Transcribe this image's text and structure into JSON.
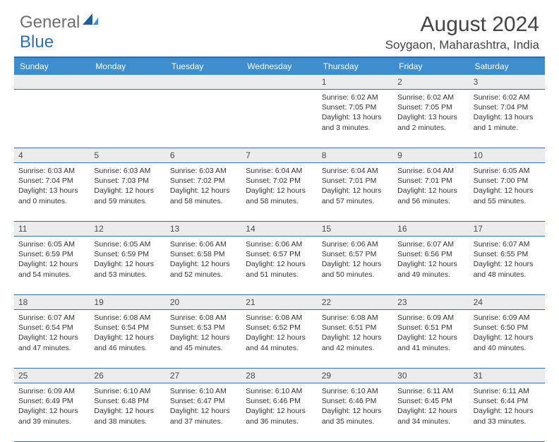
{
  "brand": {
    "part1": "General",
    "part2": "Blue"
  },
  "title": "August 2024",
  "location": "Soygaon, Maharashtra, India",
  "colors": {
    "header_bar": "#3c8ecf",
    "rule": "#2f6fab",
    "daynum_bg": "#ececec",
    "text": "#333333",
    "brand_gray": "#6e6e6e",
    "brand_blue": "#2f6fab",
    "background": "#ffffff"
  },
  "typography": {
    "title_fontsize": 30,
    "location_fontsize": 17,
    "dayhead_fontsize": 12,
    "daynum_fontsize": 12,
    "detail_fontsize": 10.5
  },
  "day_headers": [
    "Sunday",
    "Monday",
    "Tuesday",
    "Wednesday",
    "Thursday",
    "Friday",
    "Saturday"
  ],
  "weeks": [
    [
      {
        "n": "",
        "sr": "",
        "ss": "",
        "dl": ""
      },
      {
        "n": "",
        "sr": "",
        "ss": "",
        "dl": ""
      },
      {
        "n": "",
        "sr": "",
        "ss": "",
        "dl": ""
      },
      {
        "n": "",
        "sr": "",
        "ss": "",
        "dl": ""
      },
      {
        "n": "1",
        "sr": "Sunrise: 6:02 AM",
        "ss": "Sunset: 7:05 PM",
        "dl": "Daylight: 13 hours and 3 minutes."
      },
      {
        "n": "2",
        "sr": "Sunrise: 6:02 AM",
        "ss": "Sunset: 7:05 PM",
        "dl": "Daylight: 13 hours and 2 minutes."
      },
      {
        "n": "3",
        "sr": "Sunrise: 6:02 AM",
        "ss": "Sunset: 7:04 PM",
        "dl": "Daylight: 13 hours and 1 minute."
      }
    ],
    [
      {
        "n": "4",
        "sr": "Sunrise: 6:03 AM",
        "ss": "Sunset: 7:04 PM",
        "dl": "Daylight: 13 hours and 0 minutes."
      },
      {
        "n": "5",
        "sr": "Sunrise: 6:03 AM",
        "ss": "Sunset: 7:03 PM",
        "dl": "Daylight: 12 hours and 59 minutes."
      },
      {
        "n": "6",
        "sr": "Sunrise: 6:03 AM",
        "ss": "Sunset: 7:02 PM",
        "dl": "Daylight: 12 hours and 58 minutes."
      },
      {
        "n": "7",
        "sr": "Sunrise: 6:04 AM",
        "ss": "Sunset: 7:02 PM",
        "dl": "Daylight: 12 hours and 58 minutes."
      },
      {
        "n": "8",
        "sr": "Sunrise: 6:04 AM",
        "ss": "Sunset: 7:01 PM",
        "dl": "Daylight: 12 hours and 57 minutes."
      },
      {
        "n": "9",
        "sr": "Sunrise: 6:04 AM",
        "ss": "Sunset: 7:01 PM",
        "dl": "Daylight: 12 hours and 56 minutes."
      },
      {
        "n": "10",
        "sr": "Sunrise: 6:05 AM",
        "ss": "Sunset: 7:00 PM",
        "dl": "Daylight: 12 hours and 55 minutes."
      }
    ],
    [
      {
        "n": "11",
        "sr": "Sunrise: 6:05 AM",
        "ss": "Sunset: 6:59 PM",
        "dl": "Daylight: 12 hours and 54 minutes."
      },
      {
        "n": "12",
        "sr": "Sunrise: 6:05 AM",
        "ss": "Sunset: 6:59 PM",
        "dl": "Daylight: 12 hours and 53 minutes."
      },
      {
        "n": "13",
        "sr": "Sunrise: 6:06 AM",
        "ss": "Sunset: 6:58 PM",
        "dl": "Daylight: 12 hours and 52 minutes."
      },
      {
        "n": "14",
        "sr": "Sunrise: 6:06 AM",
        "ss": "Sunset: 6:57 PM",
        "dl": "Daylight: 12 hours and 51 minutes."
      },
      {
        "n": "15",
        "sr": "Sunrise: 6:06 AM",
        "ss": "Sunset: 6:57 PM",
        "dl": "Daylight: 12 hours and 50 minutes."
      },
      {
        "n": "16",
        "sr": "Sunrise: 6:07 AM",
        "ss": "Sunset: 6:56 PM",
        "dl": "Daylight: 12 hours and 49 minutes."
      },
      {
        "n": "17",
        "sr": "Sunrise: 6:07 AM",
        "ss": "Sunset: 6:55 PM",
        "dl": "Daylight: 12 hours and 48 minutes."
      }
    ],
    [
      {
        "n": "18",
        "sr": "Sunrise: 6:07 AM",
        "ss": "Sunset: 6:54 PM",
        "dl": "Daylight: 12 hours and 47 minutes."
      },
      {
        "n": "19",
        "sr": "Sunrise: 6:08 AM",
        "ss": "Sunset: 6:54 PM",
        "dl": "Daylight: 12 hours and 46 minutes."
      },
      {
        "n": "20",
        "sr": "Sunrise: 6:08 AM",
        "ss": "Sunset: 6:53 PM",
        "dl": "Daylight: 12 hours and 45 minutes."
      },
      {
        "n": "21",
        "sr": "Sunrise: 6:08 AM",
        "ss": "Sunset: 6:52 PM",
        "dl": "Daylight: 12 hours and 44 minutes."
      },
      {
        "n": "22",
        "sr": "Sunrise: 6:08 AM",
        "ss": "Sunset: 6:51 PM",
        "dl": "Daylight: 12 hours and 42 minutes."
      },
      {
        "n": "23",
        "sr": "Sunrise: 6:09 AM",
        "ss": "Sunset: 6:51 PM",
        "dl": "Daylight: 12 hours and 41 minutes."
      },
      {
        "n": "24",
        "sr": "Sunrise: 6:09 AM",
        "ss": "Sunset: 6:50 PM",
        "dl": "Daylight: 12 hours and 40 minutes."
      }
    ],
    [
      {
        "n": "25",
        "sr": "Sunrise: 6:09 AM",
        "ss": "Sunset: 6:49 PM",
        "dl": "Daylight: 12 hours and 39 minutes."
      },
      {
        "n": "26",
        "sr": "Sunrise: 6:10 AM",
        "ss": "Sunset: 6:48 PM",
        "dl": "Daylight: 12 hours and 38 minutes."
      },
      {
        "n": "27",
        "sr": "Sunrise: 6:10 AM",
        "ss": "Sunset: 6:47 PM",
        "dl": "Daylight: 12 hours and 37 minutes."
      },
      {
        "n": "28",
        "sr": "Sunrise: 6:10 AM",
        "ss": "Sunset: 6:46 PM",
        "dl": "Daylight: 12 hours and 36 minutes."
      },
      {
        "n": "29",
        "sr": "Sunrise: 6:10 AM",
        "ss": "Sunset: 6:46 PM",
        "dl": "Daylight: 12 hours and 35 minutes."
      },
      {
        "n": "30",
        "sr": "Sunrise: 6:11 AM",
        "ss": "Sunset: 6:45 PM",
        "dl": "Daylight: 12 hours and 34 minutes."
      },
      {
        "n": "31",
        "sr": "Sunrise: 6:11 AM",
        "ss": "Sunset: 6:44 PM",
        "dl": "Daylight: 12 hours and 33 minutes."
      }
    ]
  ]
}
